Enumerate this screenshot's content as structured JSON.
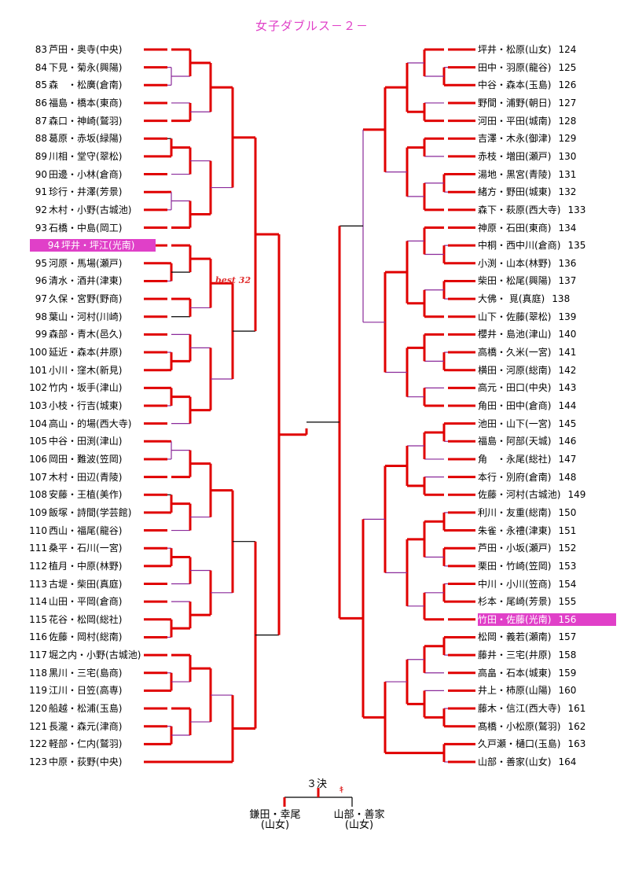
{
  "title": "女子ダブルス－２－",
  "left_entries": [
    {
      "num": "83",
      "players": "芦田・奥寺",
      "school": "(中央)"
    },
    {
      "num": "84",
      "players": "下見・菊永",
      "school": "(興陽)"
    },
    {
      "num": "85",
      "players": "森　・松廣",
      "school": "(倉南)"
    },
    {
      "num": "86",
      "players": "福島・橋本",
      "school": "(東商)"
    },
    {
      "num": "87",
      "players": "森口・神崎",
      "school": "(鷲羽)"
    },
    {
      "num": "88",
      "players": "葛原・赤坂",
      "school": "(緑陽)"
    },
    {
      "num": "89",
      "players": "川相・堂守",
      "school": "(翠松)"
    },
    {
      "num": "90",
      "players": "田邊・小林",
      "school": "(倉商)"
    },
    {
      "num": "91",
      "players": "珍行・井澤",
      "school": "(芳景)"
    },
    {
      "num": "92",
      "players": "木村・小野",
      "school": "(古城池)"
    },
    {
      "num": "93",
      "players": "石橋・中島",
      "school": "(岡工)"
    },
    {
      "num": "94",
      "players": "坪井・坪江",
      "school": "(光南)",
      "highlight": true
    },
    {
      "num": "95",
      "players": "河原・馬場",
      "school": "(瀬戸)"
    },
    {
      "num": "96",
      "players": "清水・酒井",
      "school": "(津東)"
    },
    {
      "num": "97",
      "players": "久保・宮野",
      "school": "(野商)"
    },
    {
      "num": "98",
      "players": "葉山・河村",
      "school": "(川崎)"
    },
    {
      "num": "99",
      "players": "森部・青木",
      "school": "(邑久)"
    },
    {
      "num": "100",
      "players": "延近・森本",
      "school": "(井原)"
    },
    {
      "num": "101",
      "players": "小川・窪木",
      "school": "(新見)"
    },
    {
      "num": "102",
      "players": "竹内・坂手",
      "school": "(津山)"
    },
    {
      "num": "103",
      "players": "小枝・行吉",
      "school": "(城東)"
    },
    {
      "num": "104",
      "players": "高山・的場",
      "school": "(西大寺)"
    },
    {
      "num": "105",
      "players": "中谷・田渕",
      "school": "(津山)"
    },
    {
      "num": "106",
      "players": "岡田・難波",
      "school": "(笠岡)"
    },
    {
      "num": "107",
      "players": "木村・田辺",
      "school": "(青陵)"
    },
    {
      "num": "108",
      "players": "安藤・王植",
      "school": "(美作)"
    },
    {
      "num": "109",
      "players": "飯塚・詩間",
      "school": "(学芸館)"
    },
    {
      "num": "110",
      "players": "西山・福尾",
      "school": "(龍谷)"
    },
    {
      "num": "111",
      "players": "桑平・石川",
      "school": "(一宮)"
    },
    {
      "num": "112",
      "players": "植月・中原",
      "school": "(林野)"
    },
    {
      "num": "113",
      "players": "古堤・柴田",
      "school": "(真庭)"
    },
    {
      "num": "114",
      "players": "山田・平岡",
      "school": "(倉商)"
    },
    {
      "num": "115",
      "players": "花谷・松岡",
      "school": "(総社)"
    },
    {
      "num": "116",
      "players": "佐藤・岡村",
      "school": "(総南)"
    },
    {
      "num": "117",
      "players": "堀之内・小野",
      "school": "(古城池)"
    },
    {
      "num": "118",
      "players": "黒川・三宅",
      "school": "(島商)"
    },
    {
      "num": "119",
      "players": "江川・日笠",
      "school": "(高専)"
    },
    {
      "num": "120",
      "players": "船越・松浦",
      "school": "(玉島)"
    },
    {
      "num": "121",
      "players": "長瀧・森元",
      "school": "(津商)"
    },
    {
      "num": "122",
      "players": "軽部・仁内",
      "school": "(鷲羽)"
    },
    {
      "num": "123",
      "players": "中原・荻野",
      "school": "(中央)"
    }
  ],
  "right_entries": [
    {
      "num": "124",
      "players": "坪井・松原",
      "school": "(山女)"
    },
    {
      "num": "125",
      "players": "田中・羽原",
      "school": "(龍谷)"
    },
    {
      "num": "126",
      "players": "中谷・森本",
      "school": "(玉島)"
    },
    {
      "num": "127",
      "players": "野間・浦野",
      "school": "(朝日)"
    },
    {
      "num": "128",
      "players": "河田・平田",
      "school": "(城南)"
    },
    {
      "num": "129",
      "players": "吉澤・木永",
      "school": "(御津)"
    },
    {
      "num": "130",
      "players": "赤枝・増田",
      "school": "(瀬戸)"
    },
    {
      "num": "131",
      "players": "湯地・黒宮",
      "school": "(青陵)"
    },
    {
      "num": "132",
      "players": "緒方・野田",
      "school": "(城東)"
    },
    {
      "num": "133",
      "players": "森下・萩原",
      "school": "(西大寺)"
    },
    {
      "num": "134",
      "players": "神原・石田",
      "school": "(東商)"
    },
    {
      "num": "135",
      "players": "中桐・西中川",
      "school": "(倉商)"
    },
    {
      "num": "136",
      "players": "小渕・山本",
      "school": "(林野)"
    },
    {
      "num": "137",
      "players": "柴田・松尾",
      "school": "(興陽)"
    },
    {
      "num": "138",
      "players": "大佛・ 覓",
      "school": "(真庭)"
    },
    {
      "num": "139",
      "players": "山下・佐藤",
      "school": "(翠松)"
    },
    {
      "num": "140",
      "players": "櫻井・島池",
      "school": "(津山)"
    },
    {
      "num": "141",
      "players": "高橋・久米",
      "school": "(一宮)"
    },
    {
      "num": "142",
      "players": "横田・河原",
      "school": "(総南)"
    },
    {
      "num": "143",
      "players": "高元・田口",
      "school": "(中央)"
    },
    {
      "num": "144",
      "players": "角田・田中",
      "school": "(倉商)"
    },
    {
      "num": "145",
      "players": "池田・山下",
      "school": "(一宮)"
    },
    {
      "num": "146",
      "players": "福島・阿部",
      "school": "(天城)"
    },
    {
      "num": "147",
      "players": "角　・永尾",
      "school": "(総社)"
    },
    {
      "num": "148",
      "players": "本行・別府",
      "school": "(倉南)"
    },
    {
      "num": "149",
      "players": "佐藤・河村",
      "school": "(古城池)"
    },
    {
      "num": "150",
      "players": "利川・友重",
      "school": "(総南)"
    },
    {
      "num": "151",
      "players": "朱雀・永禮",
      "school": "(津東)"
    },
    {
      "num": "152",
      "players": "芦田・小坂",
      "school": "(瀬戸)"
    },
    {
      "num": "153",
      "players": "栗田・竹崎",
      "school": "(笠岡)"
    },
    {
      "num": "154",
      "players": "中川・小川",
      "school": "(笠商)"
    },
    {
      "num": "155",
      "players": "杉本・尾崎",
      "school": "(芳景)"
    },
    {
      "num": "156",
      "players": "竹田・佐藤",
      "school": "(光南)",
      "highlight": true
    },
    {
      "num": "157",
      "players": "松岡・義若",
      "school": "(瀬南)"
    },
    {
      "num": "158",
      "players": "藤井・三宅",
      "school": "(井原)"
    },
    {
      "num": "159",
      "players": "高畠・石本",
      "school": "(城東)"
    },
    {
      "num": "160",
      "players": "井上・柿原",
      "school": "(山陽)"
    },
    {
      "num": "161",
      "players": "藤木・信江",
      "school": "(西大寺)"
    },
    {
      "num": "162",
      "players": "髙橋・小松原",
      "school": "(鷲羽)"
    },
    {
      "num": "163",
      "players": "久戸瀬・樋口",
      "school": "(玉島)"
    },
    {
      "num": "164",
      "players": "山部・善家",
      "school": "(山女)"
    }
  ],
  "best_label": "best 32",
  "third_place": {
    "title": "３決",
    "mark": "ｷ",
    "left": {
      "players": "鎌田・幸尾",
      "school": "(山女)"
    },
    "right": {
      "players": "山部・善家",
      "school": "(山女)"
    }
  },
  "colors": {
    "winner": "#e00000",
    "purple": "#8a2a9a",
    "black": "#000000",
    "highlight": "#e040c8"
  }
}
